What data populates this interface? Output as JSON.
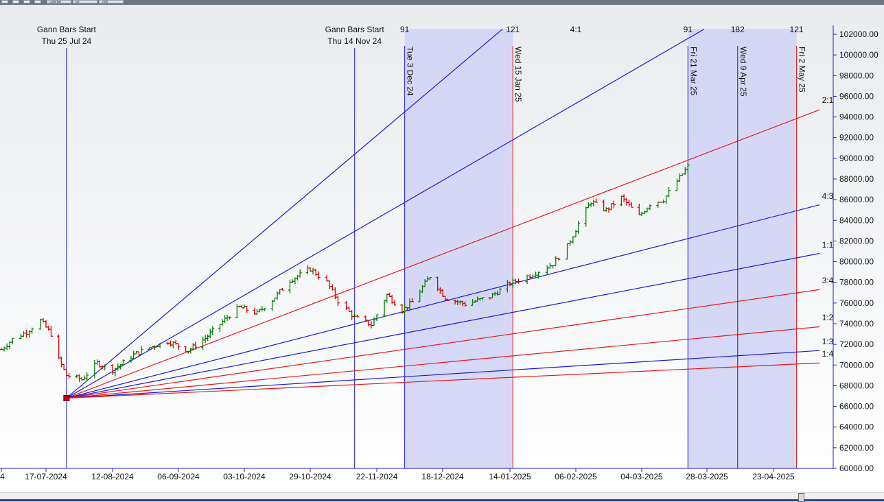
{
  "toolbar": {
    "buttons": [
      "Overlay",
      "By",
      "Tem"
    ],
    "icons": [
      "cursor-icon",
      "zoom-icon",
      "save-icon",
      "print-icon"
    ]
  },
  "colors": {
    "up_bar": "#008000",
    "down_bar": "#e00000",
    "blue_line": "#1a1ad6",
    "red_line": "#e81818",
    "band_fill": "#cfd2f4",
    "background_top": "#e9ebee",
    "background_bottom": "#ffffff"
  },
  "chart_data": {
    "type": "ohlc",
    "xlabel": "",
    "ylabel": "",
    "ylim": [
      60000,
      102500
    ],
    "x_tick_labels": [
      "4",
      "17-07-2024",
      "12-08-2024",
      "06-09-2024",
      "03-10-2024",
      "29-10-2024",
      "22-11-2024",
      "18-12-2024",
      "14-01-2025",
      "06-02-2025",
      "04-03-2025",
      "28-03-2025",
      "23-04-2025"
    ],
    "y_ticks": [
      60000,
      62000,
      64000,
      66000,
      68000,
      70000,
      72000,
      74000,
      76000,
      78000,
      80000,
      82000,
      84000,
      86000,
      88000,
      90000,
      92000,
      94000,
      96000,
      98000,
      100000,
      102000
    ],
    "y_tick_labels": [
      "60000.00",
      "62000.00",
      "64000.00",
      "66000.00",
      "68000.00",
      "70000.00",
      "72000.00",
      "74000.00",
      "76000.00",
      "78000.00",
      "80000.00",
      "82000.00",
      "84000.00",
      "86000.00",
      "88000.00",
      "90000.00",
      "92000.00",
      "94000.00",
      "96000.00",
      "98000.00",
      "100000.00",
      "102000.00"
    ],
    "x_dates": [
      "2024-07-01",
      "2024-07-17",
      "2024-08-12",
      "2024-09-06",
      "2024-10-03",
      "2024-10-29",
      "2024-11-22",
      "2024-12-18",
      "2025-01-14",
      "2025-02-06",
      "2025-03-04",
      "2025-03-28",
      "2025-04-23"
    ],
    "price_path": [
      {
        "date": "2024-07-01",
        "close": 71500
      },
      {
        "date": "2024-07-05",
        "close": 72500
      },
      {
        "date": "2024-07-10",
        "close": 73200
      },
      {
        "date": "2024-07-15",
        "close": 74300
      },
      {
        "date": "2024-07-19",
        "close": 73000
      },
      {
        "date": "2024-07-22",
        "close": 70500
      },
      {
        "date": "2024-07-25",
        "close": 69000
      },
      {
        "date": "2024-07-31",
        "close": 68600
      },
      {
        "date": "2024-08-06",
        "close": 70200
      },
      {
        "date": "2024-08-12",
        "close": 69500
      },
      {
        "date": "2024-08-20",
        "close": 71000
      },
      {
        "date": "2024-08-27",
        "close": 71800
      },
      {
        "date": "2024-09-02",
        "close": 72300
      },
      {
        "date": "2024-09-10",
        "close": 71400
      },
      {
        "date": "2024-09-17",
        "close": 72600
      },
      {
        "date": "2024-09-24",
        "close": 74200
      },
      {
        "date": "2024-10-01",
        "close": 75600
      },
      {
        "date": "2024-10-08",
        "close": 75000
      },
      {
        "date": "2024-10-14",
        "close": 76300
      },
      {
        "date": "2024-10-21",
        "close": 78200
      },
      {
        "date": "2024-10-29",
        "close": 79300
      },
      {
        "date": "2024-11-04",
        "close": 78000
      },
      {
        "date": "2024-11-08",
        "close": 76200
      },
      {
        "date": "2024-11-14",
        "close": 74600
      },
      {
        "date": "2024-11-20",
        "close": 73900
      },
      {
        "date": "2024-11-26",
        "close": 76800
      },
      {
        "date": "2024-12-02",
        "close": 75300
      },
      {
        "date": "2024-12-06",
        "close": 76100
      },
      {
        "date": "2024-12-13",
        "close": 78600
      },
      {
        "date": "2024-12-19",
        "close": 76500
      },
      {
        "date": "2024-12-27",
        "close": 75900
      },
      {
        "date": "2025-01-06",
        "close": 76600
      },
      {
        "date": "2025-01-14",
        "close": 77900
      },
      {
        "date": "2025-01-22",
        "close": 78800
      },
      {
        "date": "2025-01-29",
        "close": 79800
      },
      {
        "date": "2025-02-03",
        "close": 81500
      },
      {
        "date": "2025-02-08",
        "close": 84200
      },
      {
        "date": "2025-02-12",
        "close": 85800
      },
      {
        "date": "2025-02-18",
        "close": 85000
      },
      {
        "date": "2025-02-24",
        "close": 86200
      },
      {
        "date": "2025-03-03",
        "close": 84400
      },
      {
        "date": "2025-03-07",
        "close": 85600
      },
      {
        "date": "2025-03-12",
        "close": 86000
      },
      {
        "date": "2025-03-17",
        "close": 87800
      },
      {
        "date": "2025-03-21",
        "close": 89200
      },
      {
        "date": "2025-03-24",
        "close": 88700
      }
    ],
    "gann": {
      "origin": {
        "date": "2024-07-25",
        "price": 66800
      },
      "fans": [
        {
          "label": "4:1",
          "color": "blue",
          "end_date": "2025-01-11",
          "end_price": 102500
        },
        {
          "label": "",
          "color": "blue",
          "end_date": "2025-03-27",
          "end_price": 102500
        },
        {
          "label": "2:1",
          "color": "red",
          "end_date": "2025-05-11",
          "end_price": 94700
        },
        {
          "label": "4:3",
          "color": "blue",
          "end_date": "2025-05-11",
          "end_price": 85500
        },
        {
          "label": "1:1",
          "color": "blue",
          "end_date": "2025-05-11",
          "end_price": 80800
        },
        {
          "label": "3:4",
          "color": "red",
          "end_date": "2025-05-11",
          "end_price": 77300
        },
        {
          "label": "1:2",
          "color": "red",
          "end_date": "2025-05-11",
          "end_price": 73700
        },
        {
          "label": "1:3",
          "color": "blue",
          "end_date": "2025-05-11",
          "end_price": 71400
        },
        {
          "label": "1:4",
          "color": "red",
          "end_date": "2025-05-11",
          "end_price": 70200
        }
      ],
      "bar_labels": [
        {
          "date": "2024-07-25",
          "title": "Gann Bars Start",
          "subtitle": "Thu 25 Jul 24"
        },
        {
          "date": "2024-11-14",
          "title": "Gann Bars Start",
          "subtitle": "Thu 14 Nov 24"
        }
      ],
      "vertical_lines": [
        {
          "date": "2024-12-03",
          "label": "Tue 3 Dec 24",
          "color": "blue",
          "count": "91"
        },
        {
          "date": "2025-01-15",
          "label": "Wed 15 Jan 25",
          "color": "red",
          "count": "121"
        },
        {
          "date": "2025-03-21",
          "label": "Fri 21 Mar 25",
          "color": "blue",
          "count": "91"
        },
        {
          "date": "2025-04-09",
          "label": "Wed 9 Apr 25",
          "color": "blue",
          "count": "182"
        },
        {
          "date": "2025-05-02",
          "label": "Fri 2 May 25",
          "color": "red",
          "count": "121"
        }
      ],
      "bands": [
        {
          "from": "2024-12-03",
          "to": "2025-01-15"
        },
        {
          "from": "2025-03-21",
          "to": "2025-05-02"
        }
      ]
    }
  }
}
